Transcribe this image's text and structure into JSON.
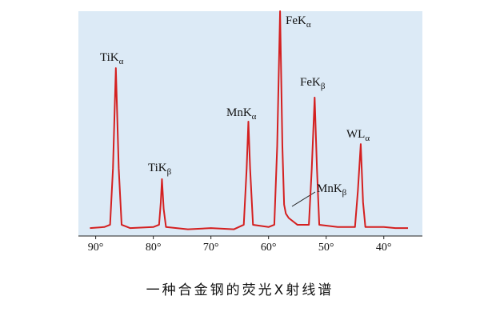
{
  "chart_data": {
    "type": "line",
    "caption": "一种合金钢的荧光X射线谱",
    "x": [
      91,
      88.5,
      87.5,
      87,
      86.5,
      86,
      85.5,
      84,
      80,
      79,
      78.7,
      78.5,
      78.2,
      77.8,
      74,
      70,
      66,
      64.3,
      63.8,
      63.5,
      63.2,
      62.7,
      60,
      59,
      58.5,
      58,
      57.6,
      57.3,
      57,
      56.5,
      55,
      53,
      52.5,
      52,
      51.6,
      51.2,
      48,
      45,
      44.5,
      44,
      43.6,
      43.2,
      40,
      38,
      35.8
    ],
    "series": [
      {
        "color": "#d42020",
        "values": [
          3.5,
          4,
          5,
          30,
          74.7,
          30,
          5,
          3.5,
          4,
          5,
          15,
          25.3,
          12,
          4,
          3,
          3.5,
          3,
          5,
          30,
          50.9,
          30,
          5,
          4,
          5,
          40,
          100,
          40,
          14,
          10,
          8,
          5,
          5,
          30,
          61.6,
          30,
          5,
          4,
          4,
          20,
          40.9,
          15,
          4,
          4,
          3.5,
          3.5
        ]
      }
    ],
    "xlim": [
      93,
      33.3
    ],
    "ylim": [
      0,
      100
    ],
    "xticks": [
      {
        "value": 90,
        "label": "90°"
      },
      {
        "value": 80,
        "label": "80°"
      },
      {
        "value": 70,
        "label": "70°"
      },
      {
        "value": 60,
        "label": "60°"
      },
      {
        "value": 50,
        "label": "50°"
      },
      {
        "value": 40,
        "label": "40°"
      }
    ],
    "annotations": [
      {
        "text": "TiK",
        "sub": "α"
      },
      {
        "text": "TiK",
        "sub": "β"
      },
      {
        "text": "MnK",
        "sub": "α"
      },
      {
        "text": "FeK",
        "sub": "α"
      },
      {
        "text": "FeK",
        "sub": "β"
      },
      {
        "text": "MnK",
        "sub": "β"
      },
      {
        "text": "WL",
        "sub": "α"
      }
    ],
    "background": "#dceaf6"
  }
}
